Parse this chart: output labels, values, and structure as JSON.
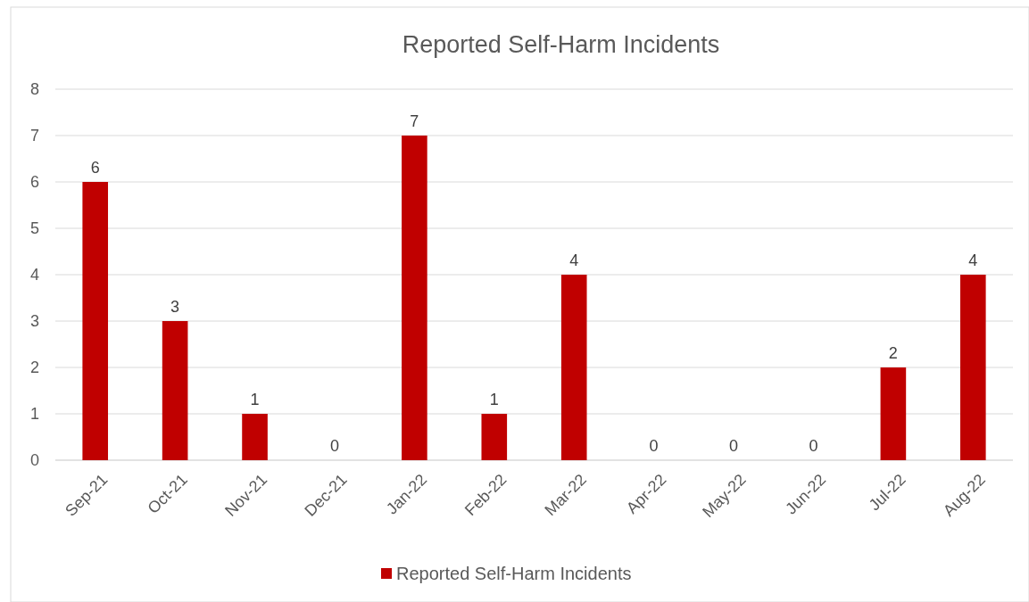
{
  "chart_data": {
    "type": "bar",
    "title": "Reported Self-Harm Incidents",
    "categories": [
      "Sep-21",
      "Oct-21",
      "Nov-21",
      "Dec-21",
      "Jan-22",
      "Feb-22",
      "Mar-22",
      "Apr-22",
      "May-22",
      "Jun-22",
      "Jul-22",
      "Aug-22"
    ],
    "series": [
      {
        "name": "Reported Self-Harm Incidents",
        "color": "#c00000",
        "values": [
          6,
          3,
          1,
          0,
          7,
          1,
          4,
          0,
          0,
          0,
          2,
          4
        ]
      }
    ],
    "ylim": [
      0,
      8
    ],
    "yticks": [
      0,
      1,
      2,
      3,
      4,
      5,
      6,
      7,
      8
    ],
    "grid": "y",
    "legend": "bottom",
    "data_labels": true
  }
}
